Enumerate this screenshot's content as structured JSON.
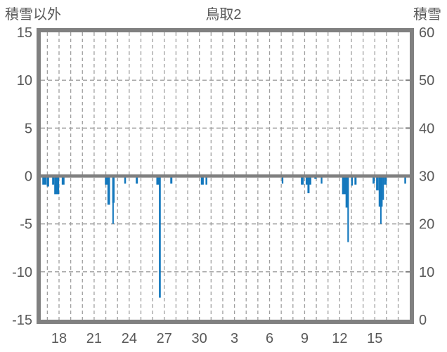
{
  "chart": {
    "title": "鳥取2",
    "left_axis": {
      "label": "積雪以外"
    },
    "right_axis": {
      "label": "積雪"
    }
  },
  "chart_data": {
    "type": "bar",
    "title": "鳥取2",
    "left_axis_label": "積雪以外",
    "right_axis_label": "積雪",
    "left_ylim": [
      -15,
      15
    ],
    "right_ylim": [
      0,
      60
    ],
    "left_yticks": [
      15,
      10,
      5,
      0,
      -5,
      -10,
      -15
    ],
    "right_yticks": [
      60,
      50,
      40,
      30,
      20,
      10,
      0
    ],
    "x_index_range": [
      16.4,
      48
    ],
    "x_ticks": [
      {
        "index": 18,
        "label": "18"
      },
      {
        "index": 21,
        "label": "21"
      },
      {
        "index": 24,
        "label": "24"
      },
      {
        "index": 27,
        "label": "27"
      },
      {
        "index": 30,
        "label": "30"
      },
      {
        "index": 33,
        "label": "3"
      },
      {
        "index": 36,
        "label": "6"
      },
      {
        "index": 39,
        "label": "9"
      },
      {
        "index": 42,
        "label": "12"
      },
      {
        "index": 45,
        "label": "15"
      }
    ],
    "grid": {
      "vertical_every_index": 1,
      "horizontal_at_left_values": [
        10,
        5,
        -5,
        -10
      ],
      "right_border_tick_values": [
        10,
        5,
        -5,
        -10
      ],
      "style": "dashed"
    },
    "zero_line": true,
    "colors": {
      "bar": "#1478bd",
      "axis_border": "#808080",
      "zero_line": "#808080",
      "grid": "#9f9f9f",
      "text": "#595959",
      "background": "#ffffff"
    },
    "series": [
      {
        "name": "積雪以外",
        "axis": "left",
        "color": "#1478bd",
        "bars": [
          {
            "x": 16.75,
            "w": 0.36,
            "v": -0.9
          },
          {
            "x": 17.05,
            "w": 0.2,
            "v": -1.1
          },
          {
            "x": 17.5,
            "w": 0.18,
            "v": -0.9
          },
          {
            "x": 17.8,
            "w": 0.42,
            "v": -1.9
          },
          {
            "x": 18.35,
            "w": 0.24,
            "v": -0.9
          },
          {
            "x": 22.1,
            "w": 0.36,
            "v": -0.9
          },
          {
            "x": 22.25,
            "w": 0.22,
            "v": -3.0
          },
          {
            "x": 22.65,
            "w": 0.2,
            "v": -2.8
          },
          {
            "x": 22.62,
            "w": 0.1,
            "v": -5.0
          },
          {
            "x": 23.65,
            "w": 0.15,
            "v": -0.8
          },
          {
            "x": 24.65,
            "w": 0.18,
            "v": -0.8
          },
          {
            "x": 26.5,
            "w": 0.36,
            "v": -0.9
          },
          {
            "x": 26.62,
            "w": 0.16,
            "v": -12.7
          },
          {
            "x": 27.6,
            "w": 0.18,
            "v": -0.8
          },
          {
            "x": 30.25,
            "w": 0.25,
            "v": -0.9
          },
          {
            "x": 30.6,
            "w": 0.15,
            "v": -0.9
          },
          {
            "x": 37.11,
            "w": 0.14,
            "v": -0.8
          },
          {
            "x": 38.8,
            "w": 0.24,
            "v": -0.9
          },
          {
            "x": 39.33,
            "w": 0.48,
            "v": -0.9
          },
          {
            "x": 39.33,
            "w": 0.18,
            "v": -1.8
          },
          {
            "x": 39.93,
            "w": 0.2,
            "v": -0.3
          },
          {
            "x": 40.45,
            "w": 0.14,
            "v": -0.8
          },
          {
            "x": 42.45,
            "w": 0.5,
            "v": -1.9
          },
          {
            "x": 42.62,
            "w": 0.24,
            "v": -3.3
          },
          {
            "x": 42.72,
            "w": 0.13,
            "v": -6.9
          },
          {
            "x": 43.05,
            "w": 0.15,
            "v": -1.0
          },
          {
            "x": 43.35,
            "w": 0.18,
            "v": -0.9
          },
          {
            "x": 44.9,
            "w": 0.18,
            "v": -0.8
          },
          {
            "x": 45.22,
            "w": 0.22,
            "v": -1.5
          },
          {
            "x": 45.5,
            "w": 0.34,
            "v": -3.2
          },
          {
            "x": 45.52,
            "w": 0.12,
            "v": -5.0
          },
          {
            "x": 45.72,
            "w": 0.12,
            "v": -2.5
          },
          {
            "x": 45.9,
            "w": 0.24,
            "v": -0.9
          },
          {
            "x": 47.6,
            "w": 0.15,
            "v": -0.8
          }
        ]
      }
    ]
  }
}
